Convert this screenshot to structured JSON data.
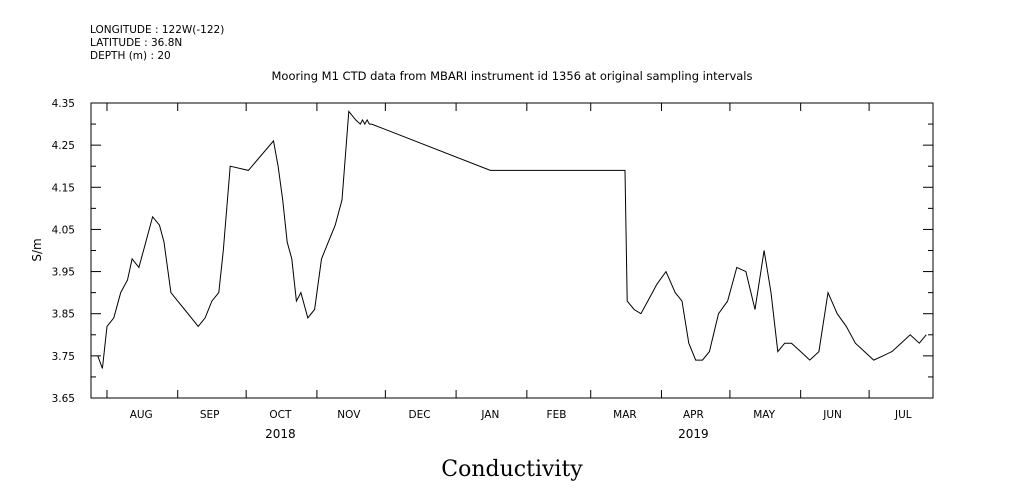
{
  "header": {
    "longitude": "LONGITUDE : 122W(-122)",
    "latitude": "LATITUDE : 36.8N",
    "depth": "DEPTH (m) : 20"
  },
  "chart_data": {
    "type": "line",
    "title": "Mooring M1 CTD data from MBARI instrument id 1356 at original sampling intervals",
    "bottom_title": "Conductivity",
    "ylabel": "S/m",
    "xlabel": "",
    "ylim": [
      3.65,
      4.35
    ],
    "yticks": [
      3.65,
      3.75,
      3.85,
      3.95,
      4.05,
      4.15,
      4.25,
      4.35
    ],
    "ytick_labels": [
      "3.65",
      "3.75",
      "3.85",
      "3.95",
      "4.05",
      "4.15",
      "4.25",
      "4.35"
    ],
    "x_axis_start": "2018-07-25",
    "x_axis_end": "2019-07-29",
    "month_labels": [
      {
        "label": "AUG",
        "date": "2018-08-16"
      },
      {
        "label": "SEP",
        "date": "2018-09-15"
      },
      {
        "label": "OCT",
        "date": "2018-10-16"
      },
      {
        "label": "NOV",
        "date": "2018-11-15"
      },
      {
        "label": "DEC",
        "date": "2018-12-16"
      },
      {
        "label": "JAN",
        "date": "2019-01-16"
      },
      {
        "label": "FEB",
        "date": "2019-02-14"
      },
      {
        "label": "MAR",
        "date": "2019-03-16"
      },
      {
        "label": "APR",
        "date": "2019-04-15"
      },
      {
        "label": "MAY",
        "date": "2019-05-16"
      },
      {
        "label": "JUN",
        "date": "2019-06-15"
      },
      {
        "label": "JUL",
        "date": "2019-07-16"
      }
    ],
    "year_labels": [
      {
        "label": "2018",
        "date": "2018-10-16"
      },
      {
        "label": "2019",
        "date": "2019-04-15"
      }
    ],
    "series": [
      {
        "x": [
          "2018-07-28",
          "2018-07-30",
          "2018-08-01",
          "2018-08-04",
          "2018-08-07",
          "2018-08-10",
          "2018-08-12",
          "2018-08-15",
          "2018-08-18",
          "2018-08-21",
          "2018-08-24",
          "2018-08-26",
          "2018-08-29",
          "2018-09-01",
          "2018-09-04",
          "2018-09-07",
          "2018-09-10",
          "2018-09-13",
          "2018-09-16",
          "2018-09-19",
          "2018-09-21",
          "2018-09-24",
          "2018-10-02",
          "2018-10-13",
          "2018-10-15",
          "2018-10-17",
          "2018-10-19",
          "2018-10-21",
          "2018-10-23",
          "2018-10-25",
          "2018-10-28",
          "2018-10-31",
          "2018-11-03",
          "2018-11-06",
          "2018-11-09",
          "2018-11-12",
          "2018-11-15",
          "2018-11-18",
          "2018-11-20",
          "2018-11-21",
          "2018-11-22",
          "2018-11-23",
          "2018-11-24",
          "2018-11-25",
          "2019-01-16",
          "2019-03-16",
          "2019-03-17",
          "2019-03-20",
          "2019-03-23",
          "2019-03-26",
          "2019-03-30",
          "2019-04-03",
          "2019-04-07",
          "2019-04-10",
          "2019-04-13",
          "2019-04-16",
          "2019-04-19",
          "2019-04-22",
          "2019-04-26",
          "2019-04-30",
          "2019-05-04",
          "2019-05-08",
          "2019-05-12",
          "2019-05-16",
          "2019-05-19",
          "2019-05-22",
          "2019-05-25",
          "2019-05-28",
          "2019-06-01",
          "2019-06-05",
          "2019-06-09",
          "2019-06-13",
          "2019-06-17",
          "2019-06-21",
          "2019-06-25",
          "2019-06-29",
          "2019-07-03",
          "2019-07-07",
          "2019-07-11",
          "2019-07-15",
          "2019-07-19",
          "2019-07-23",
          "2019-07-26"
        ],
        "y": [
          3.75,
          3.72,
          3.82,
          3.84,
          3.9,
          3.93,
          3.98,
          3.96,
          4.02,
          4.08,
          4.06,
          4.02,
          3.9,
          3.88,
          3.86,
          3.84,
          3.82,
          3.84,
          3.88,
          3.9,
          4.0,
          4.2,
          4.19,
          4.26,
          4.2,
          4.12,
          4.02,
          3.98,
          3.88,
          3.9,
          3.84,
          3.86,
          3.98,
          4.02,
          4.06,
          4.12,
          4.33,
          4.31,
          4.3,
          4.31,
          4.3,
          4.31,
          4.3,
          4.3,
          4.19,
          4.19,
          3.88,
          3.86,
          3.85,
          3.88,
          3.92,
          3.95,
          3.9,
          3.88,
          3.78,
          3.74,
          3.74,
          3.76,
          3.85,
          3.88,
          3.96,
          3.95,
          3.86,
          4.0,
          3.9,
          3.76,
          3.78,
          3.78,
          3.76,
          3.74,
          3.76,
          3.9,
          3.85,
          3.82,
          3.78,
          3.76,
          3.74,
          3.75,
          3.76,
          3.78,
          3.8,
          3.78,
          3.8
        ]
      }
    ],
    "grid": false,
    "line_color": "#000000"
  }
}
